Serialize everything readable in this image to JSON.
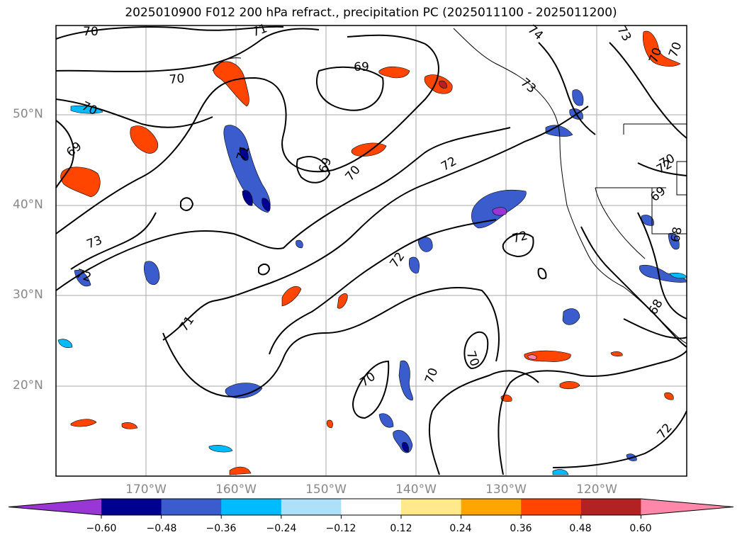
{
  "title": "2025010900 F012 200 hPa refract., precipitation PC (2025011100 - 2025011200)",
  "lat_labels": [
    "50°N",
    "40°N",
    "30°N",
    "20°N"
  ],
  "lon_labels": [
    "170°W",
    "160°W",
    "150°W",
    "140°W",
    "130°W",
    "120°W"
  ],
  "contour_labels": [
    "70",
    "71",
    "74",
    "73",
    "70",
    "69",
    "70",
    "73",
    "70",
    "69",
    "71",
    "69",
    "70",
    "72",
    "72",
    "70",
    "72",
    "73",
    "72",
    "72",
    "71",
    "70",
    "70",
    "70",
    "70",
    "72",
    "69",
    "68",
    "68"
  ],
  "colorbar": {
    "ticks": [
      "−0.60",
      "−0.48",
      "−0.36",
      "−0.24",
      "−0.12",
      "0.12",
      "0.24",
      "0.36",
      "0.48",
      "0.60"
    ],
    "colors": [
      "#9a35d6",
      "#000090",
      "#3a5ccc",
      "#00bbff",
      "#aee0fa",
      "#ffffff",
      "#ffe98a",
      "#ffa500",
      "#ff4500",
      "#b22222",
      "#ff88aa"
    ]
  },
  "colors": {
    "contour": "#000000",
    "grid": "#aaaaaa",
    "coast": "#000000"
  }
}
